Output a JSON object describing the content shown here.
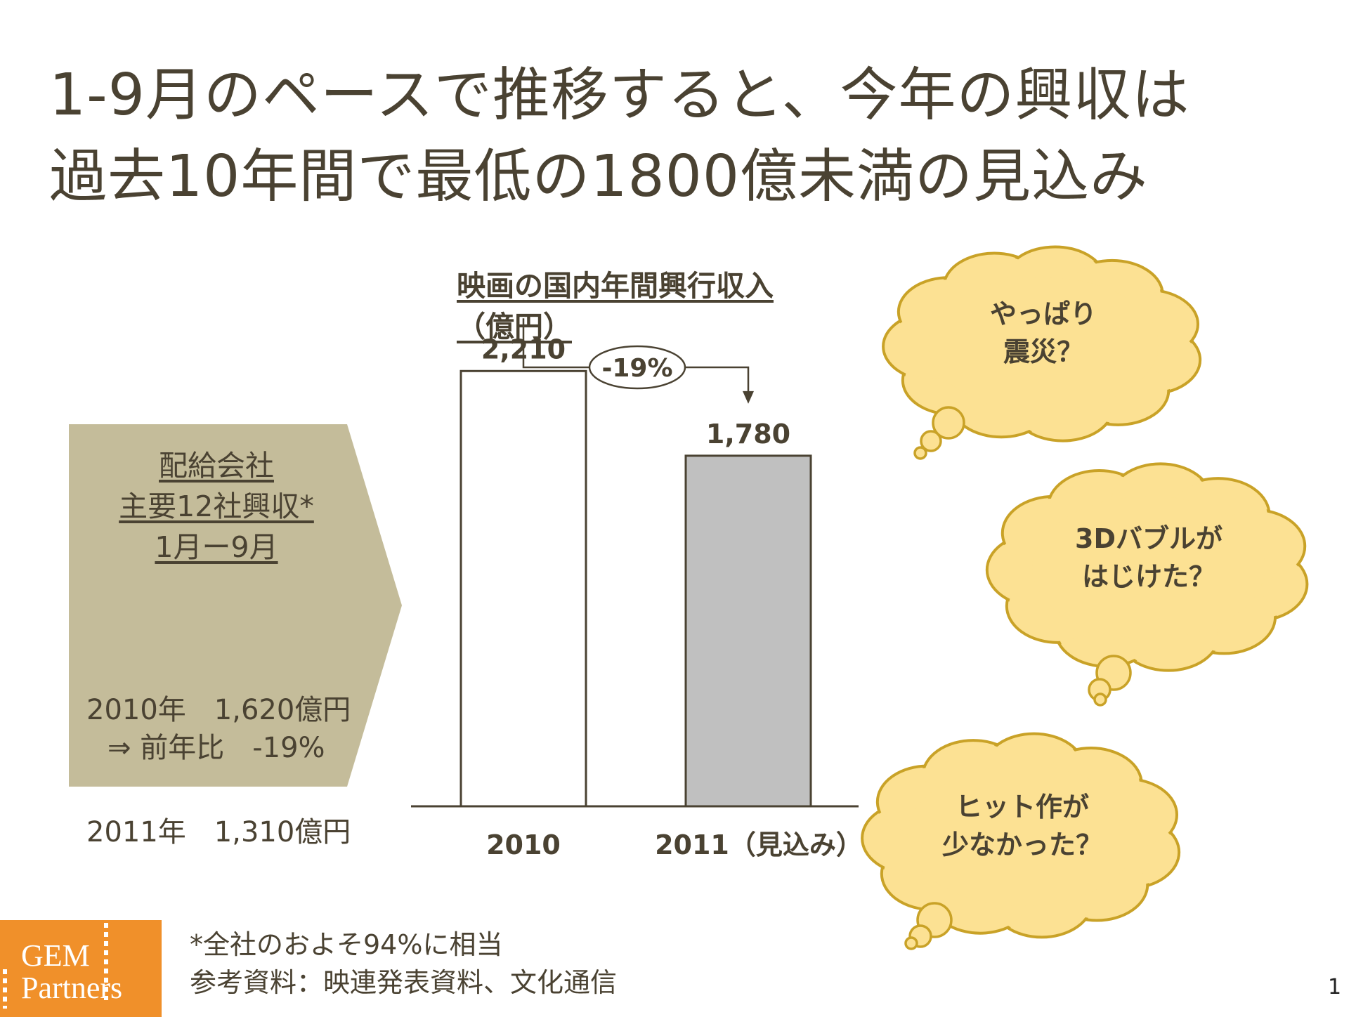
{
  "title": {
    "line1": "1-9月のペースで推移すると、今年の興収は",
    "line2": "過去10年間で最低の1800億未満の見込み"
  },
  "panel": {
    "heading": [
      "配給会社",
      "主要12社興収*",
      "1月ー9月"
    ],
    "rows": [
      "2010年　1,620億円",
      "2011年　1,310億円"
    ],
    "ratio": "⇒ 前年比　-19%",
    "color": "#c4bc9a"
  },
  "chart_data": {
    "type": "bar",
    "title_lines": [
      "映画の国内年間興行収入",
      "（億円）"
    ],
    "categories": [
      "2010",
      "2011（見込み）"
    ],
    "values": [
      2210,
      1780
    ],
    "value_labels": [
      "2,210",
      "1,780"
    ],
    "colors": [
      "#ffffff",
      "#c0c0c0"
    ],
    "change_label": "-19%",
    "ylim": [
      0,
      2400
    ],
    "grid": false,
    "xlabel": "",
    "ylabel": ""
  },
  "bubbles": [
    {
      "lines": [
        "やっぱり",
        "震災？"
      ]
    },
    {
      "lines": [
        "3Dバブルが",
        "はじけた？"
      ]
    },
    {
      "lines": [
        "ヒット作が",
        "少なかった？"
      ]
    }
  ],
  "bubble_style": {
    "fill": "#fce193",
    "stroke": "#c9a227"
  },
  "footer": {
    "logo_line1": "GEM",
    "logo_line2": "Partners",
    "note": "*全社のおよそ94%に相当",
    "source": "参考資料：映連発表資料、文化通信",
    "page": "1",
    "logo_color": "#f0902a"
  }
}
